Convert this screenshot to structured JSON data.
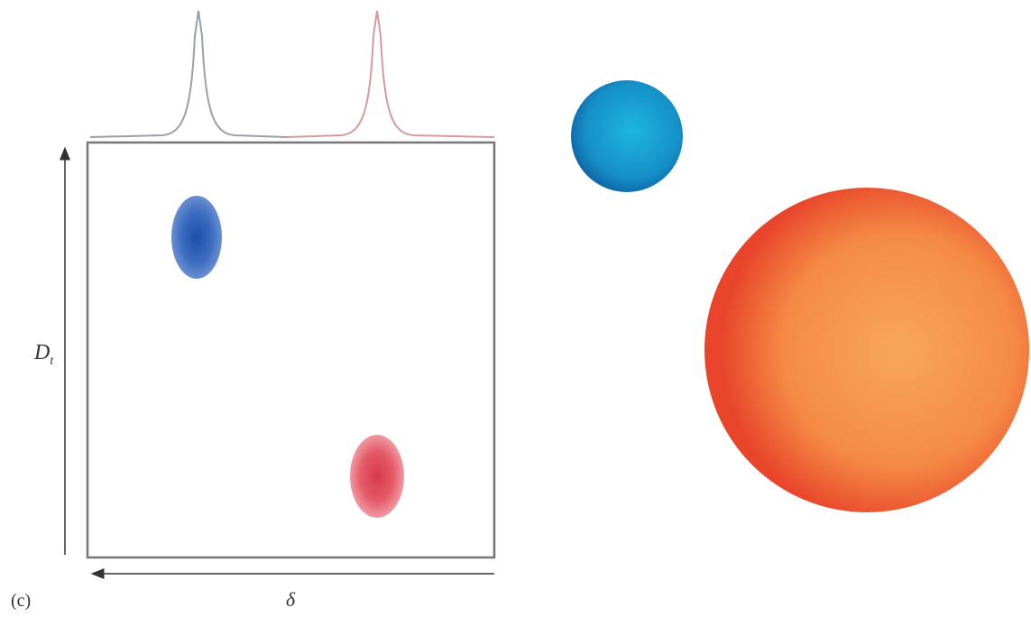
{
  "labels": {
    "y_axis": "D",
    "y_axis_sub": "t",
    "x_axis": "δ",
    "panel": "(c)"
  }
}
